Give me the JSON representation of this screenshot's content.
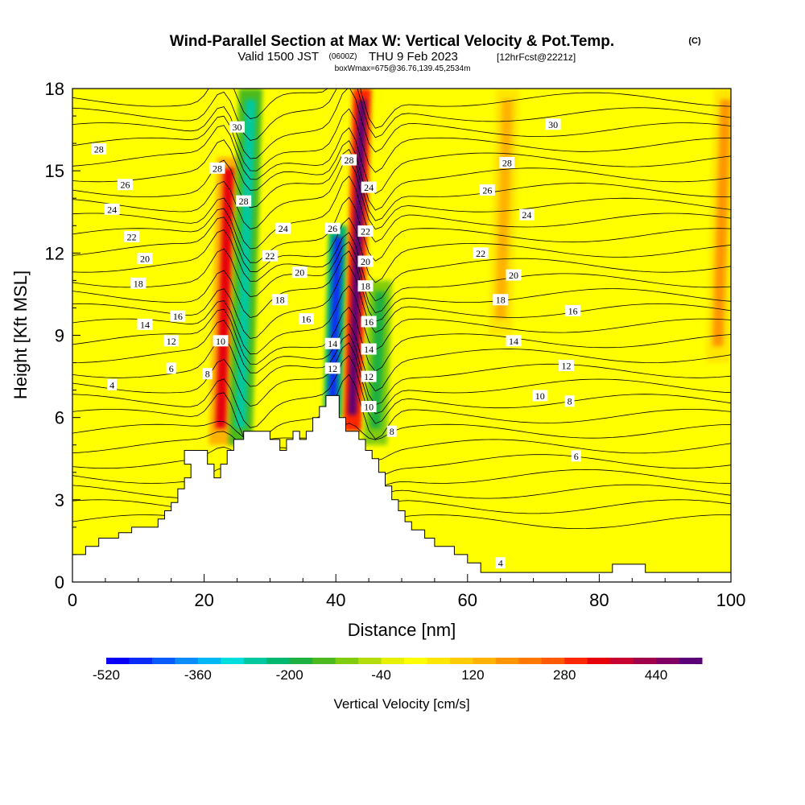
{
  "header": {
    "title": "Wind-Parallel Section at Max W: Vertical Velocity & Pot.Temp.",
    "copyright": "(C)",
    "valid_main": "Valid 1500 JST",
    "valid_zulu": "(0600Z)",
    "valid_date": "THU 9 Feb 2023",
    "forecast": "[12hrFcst@2221z]",
    "boxinfo": "boxWmax=675@36.76,139.45,2534m"
  },
  "chart_data": {
    "type": "heatmap",
    "xlabel": "Distance [nm]",
    "ylabel": "Height [Kft MSL]",
    "xlim": [
      0,
      100
    ],
    "ylim": [
      0,
      18
    ],
    "x_ticks": [
      "0",
      "20",
      "40",
      "60",
      "80",
      "100"
    ],
    "y_ticks": [
      "0",
      "3",
      "6",
      "9",
      "12",
      "15",
      "18"
    ],
    "fill_field": "Vertical Velocity [cm/s]",
    "colorbar": {
      "label": "Vertical Velocity [cm/s]",
      "min": -520,
      "max": 520,
      "step": 40,
      "tick_labels": [
        "-520",
        "-360",
        "-200",
        "-40",
        "120",
        "280",
        "440"
      ],
      "colors": [
        "#0a00f5",
        "#0a2af8",
        "#0a5cfa",
        "#0a8cfa",
        "#00b8f6",
        "#00dede",
        "#00c8a0",
        "#00b870",
        "#1eb040",
        "#4cba1e",
        "#82cc10",
        "#b4dc0a",
        "#e6f000",
        "#ffff00",
        "#ffe600",
        "#ffcc00",
        "#ffb200",
        "#ff9600",
        "#ff7800",
        "#ff5a00",
        "#ff2800",
        "#e6000a",
        "#c80032",
        "#a0004b",
        "#800064",
        "#5a0078"
      ]
    },
    "velocity_bands": [
      {
        "x": 22.5,
        "z0": 5.0,
        "z1": 15.5,
        "w": 320,
        "note": "updraft"
      },
      {
        "x": 25.5,
        "z0": 5.0,
        "z1": 18.0,
        "w": -280,
        "note": "downdraft"
      },
      {
        "x": 39.5,
        "z0": 6.0,
        "z1": 13.0,
        "w": -480,
        "note": "downdraft"
      },
      {
        "x": 42.5,
        "z0": 5.5,
        "z1": 18.0,
        "w": 675,
        "note": "updraft (max W)"
      },
      {
        "x": 46.0,
        "z0": 5.0,
        "z1": 11.0,
        "w": -200,
        "note": "downdraft"
      },
      {
        "x": 65.0,
        "z0": 9.0,
        "z1": 18.0,
        "w": 120,
        "note": "weak updraft"
      },
      {
        "x": 98.0,
        "z0": 8.0,
        "z1": 18.0,
        "w": 160,
        "note": "weak updraft"
      }
    ],
    "terrain": [
      {
        "x": 0,
        "z": 1.0
      },
      {
        "x": 2,
        "z": 1.0
      },
      {
        "x": 2,
        "z": 1.3
      },
      {
        "x": 4,
        "z": 1.3
      },
      {
        "x": 4,
        "z": 1.6
      },
      {
        "x": 7,
        "z": 1.6
      },
      {
        "x": 7,
        "z": 1.8
      },
      {
        "x": 9,
        "z": 1.8
      },
      {
        "x": 9,
        "z": 2.0
      },
      {
        "x": 13,
        "z": 2.0
      },
      {
        "x": 13,
        "z": 2.3
      },
      {
        "x": 14,
        "z": 2.3
      },
      {
        "x": 14,
        "z": 2.6
      },
      {
        "x": 15,
        "z": 2.6
      },
      {
        "x": 15,
        "z": 2.9
      },
      {
        "x": 16,
        "z": 2.9
      },
      {
        "x": 16,
        "z": 3.4
      },
      {
        "x": 17,
        "z": 3.4
      },
      {
        "x": 17,
        "z": 3.8
      },
      {
        "x": 18,
        "z": 3.8
      },
      {
        "x": 18,
        "z": 4.3
      },
      {
        "x": 17,
        "z": 4.3
      },
      {
        "x": 17,
        "z": 4.8
      },
      {
        "x": 20.5,
        "z": 4.8
      },
      {
        "x": 20.5,
        "z": 4.3
      },
      {
        "x": 21.5,
        "z": 4.3
      },
      {
        "x": 21.5,
        "z": 3.8
      },
      {
        "x": 22.5,
        "z": 3.8
      },
      {
        "x": 22.5,
        "z": 4.3
      },
      {
        "x": 23.5,
        "z": 4.3
      },
      {
        "x": 23.5,
        "z": 4.8
      },
      {
        "x": 24.5,
        "z": 4.8
      },
      {
        "x": 24.5,
        "z": 5.2
      },
      {
        "x": 26,
        "z": 5.2
      },
      {
        "x": 26,
        "z": 5.5
      },
      {
        "x": 30,
        "z": 5.5
      },
      {
        "x": 30,
        "z": 5.2
      },
      {
        "x": 31.5,
        "z": 5.2
      },
      {
        "x": 31.5,
        "z": 4.8
      },
      {
        "x": 32.5,
        "z": 4.8
      },
      {
        "x": 32.5,
        "z": 5.2
      },
      {
        "x": 33.5,
        "z": 5.2
      },
      {
        "x": 33.5,
        "z": 5.5
      },
      {
        "x": 34.5,
        "z": 5.5
      },
      {
        "x": 34.5,
        "z": 5.2
      },
      {
        "x": 35.5,
        "z": 5.2
      },
      {
        "x": 35.5,
        "z": 5.5
      },
      {
        "x": 36.5,
        "z": 5.5
      },
      {
        "x": 36.5,
        "z": 6.0
      },
      {
        "x": 37.5,
        "z": 6.0
      },
      {
        "x": 37.5,
        "z": 6.4
      },
      {
        "x": 38.5,
        "z": 6.4
      },
      {
        "x": 38.5,
        "z": 6.8
      },
      {
        "x": 40.5,
        "z": 6.8
      },
      {
        "x": 40.5,
        "z": 6.0
      },
      {
        "x": 41.5,
        "z": 6.0
      },
      {
        "x": 41.5,
        "z": 5.5
      },
      {
        "x": 43.5,
        "z": 5.5
      },
      {
        "x": 43.5,
        "z": 5.2
      },
      {
        "x": 44.5,
        "z": 5.2
      },
      {
        "x": 44.5,
        "z": 4.8
      },
      {
        "x": 45.5,
        "z": 4.8
      },
      {
        "x": 45.5,
        "z": 4.5
      },
      {
        "x": 46.5,
        "z": 4.5
      },
      {
        "x": 46.5,
        "z": 4.0
      },
      {
        "x": 47.5,
        "z": 4.0
      },
      {
        "x": 47.5,
        "z": 3.5
      },
      {
        "x": 48.5,
        "z": 3.5
      },
      {
        "x": 48.5,
        "z": 3.0
      },
      {
        "x": 49.5,
        "z": 3.0
      },
      {
        "x": 49.5,
        "z": 2.6
      },
      {
        "x": 50.5,
        "z": 2.6
      },
      {
        "x": 50.5,
        "z": 2.2
      },
      {
        "x": 51.5,
        "z": 2.2
      },
      {
        "x": 51.5,
        "z": 1.9
      },
      {
        "x": 53.5,
        "z": 1.9
      },
      {
        "x": 53.5,
        "z": 1.6
      },
      {
        "x": 55,
        "z": 1.6
      },
      {
        "x": 55,
        "z": 1.3
      },
      {
        "x": 58,
        "z": 1.3
      },
      {
        "x": 58,
        "z": 1.0
      },
      {
        "x": 60,
        "z": 1.0
      },
      {
        "x": 60,
        "z": 0.7
      },
      {
        "x": 62,
        "z": 0.7
      },
      {
        "x": 62,
        "z": 0.35
      },
      {
        "x": 82,
        "z": 0.35
      },
      {
        "x": 82,
        "z": 0.65
      },
      {
        "x": 87,
        "z": 0.65
      },
      {
        "x": 87,
        "z": 0.35
      },
      {
        "x": 100,
        "z": 0.35
      }
    ],
    "theta_contours": [
      {
        "label": "4",
        "x": 6,
        "z": 7.2
      },
      {
        "label": "6",
        "x": 15,
        "z": 7.8
      },
      {
        "label": "12",
        "x": 15,
        "z": 8.8
      },
      {
        "label": "14",
        "x": 11,
        "z": 9.4
      },
      {
        "label": "16",
        "x": 16,
        "z": 9.7
      },
      {
        "label": "18",
        "x": 10,
        "z": 10.9
      },
      {
        "label": "20",
        "x": 11,
        "z": 11.8
      },
      {
        "label": "22",
        "x": 9,
        "z": 12.6
      },
      {
        "label": "24",
        "x": 6,
        "z": 13.6
      },
      {
        "label": "26",
        "x": 8,
        "z": 14.5
      },
      {
        "label": "28",
        "x": 4,
        "z": 15.8
      },
      {
        "label": "8",
        "x": 20.5,
        "z": 7.6
      },
      {
        "label": "10",
        "x": 22.5,
        "z": 8.8
      },
      {
        "label": "28",
        "x": 22,
        "z": 15.1
      },
      {
        "label": "30",
        "x": 25,
        "z": 16.6
      },
      {
        "label": "28",
        "x": 26,
        "z": 13.9
      },
      {
        "label": "24",
        "x": 32,
        "z": 12.9
      },
      {
        "label": "22",
        "x": 30,
        "z": 11.9
      },
      {
        "label": "20",
        "x": 34.5,
        "z": 11.3
      },
      {
        "label": "18",
        "x": 31.5,
        "z": 10.3
      },
      {
        "label": "16",
        "x": 35.5,
        "z": 9.6
      },
      {
        "label": "14",
        "x": 39.5,
        "z": 8.7
      },
      {
        "label": "12",
        "x": 39.5,
        "z": 7.8
      },
      {
        "label": "26",
        "x": 39.5,
        "z": 12.9
      },
      {
        "label": "28",
        "x": 42,
        "z": 15.4
      },
      {
        "label": "24",
        "x": 45,
        "z": 14.4
      },
      {
        "label": "22",
        "x": 44.5,
        "z": 12.8
      },
      {
        "label": "20",
        "x": 44.5,
        "z": 11.7
      },
      {
        "label": "18",
        "x": 44.5,
        "z": 10.8
      },
      {
        "label": "16",
        "x": 45,
        "z": 9.5
      },
      {
        "label": "14",
        "x": 45,
        "z": 8.5
      },
      {
        "label": "12",
        "x": 45,
        "z": 7.5
      },
      {
        "label": "10",
        "x": 45,
        "z": 6.4
      },
      {
        "label": "8",
        "x": 48.5,
        "z": 5.5
      },
      {
        "label": "30",
        "x": 73,
        "z": 16.7
      },
      {
        "label": "28",
        "x": 66,
        "z": 15.3
      },
      {
        "label": "26",
        "x": 63,
        "z": 14.3
      },
      {
        "label": "24",
        "x": 69,
        "z": 13.4
      },
      {
        "label": "22",
        "x": 62,
        "z": 12.0
      },
      {
        "label": "20",
        "x": 67,
        "z": 11.2
      },
      {
        "label": "18",
        "x": 65,
        "z": 10.3
      },
      {
        "label": "16",
        "x": 76,
        "z": 9.9
      },
      {
        "label": "14",
        "x": 67,
        "z": 8.8
      },
      {
        "label": "12",
        "x": 75,
        "z": 7.9
      },
      {
        "label": "10",
        "x": 71,
        "z": 6.8
      },
      {
        "label": "8",
        "x": 75.5,
        "z": 6.6
      },
      {
        "label": "6",
        "x": 76.5,
        "z": 4.6
      },
      {
        "label": "4",
        "x": 65,
        "z": 0.7
      }
    ]
  }
}
